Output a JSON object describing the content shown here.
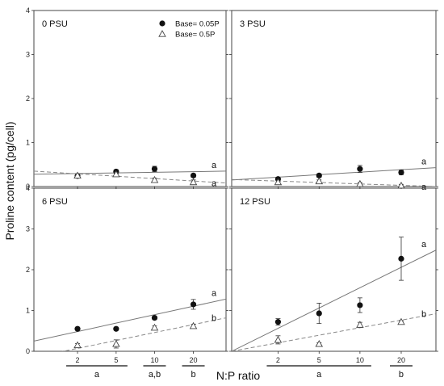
{
  "chart_data": {
    "type": "scatter",
    "y_axis_label": "Proline content (pg/cell)",
    "x_axis_label": "N:P ratio",
    "x_categories": [
      "2",
      "5",
      "10",
      "20"
    ],
    "y_ticks": [
      "0",
      "1",
      "2",
      "3",
      "4"
    ],
    "ylim": [
      0,
      4
    ],
    "legend": {
      "location": "top-right of first panel",
      "series": [
        {
          "label": "Base=  0.05P",
          "marker": "filled-circle",
          "line": "solid"
        },
        {
          "label": "Base=  0.5P",
          "marker": "open-triangle",
          "line": "dashed"
        }
      ]
    },
    "panels": [
      {
        "label": "0 PSU",
        "series": [
          {
            "name": "Base=  0.05P",
            "values": [
              0.24,
              0.34,
              0.4,
              0.25
            ],
            "errors": [
              0.03,
              0.04,
              0.06,
              0.04
            ],
            "fit": {
              "y_start": 0.28,
              "y_end": 0.35
            },
            "fit_label": "a"
          },
          {
            "name": "Base=  0.5P",
            "values": [
              0.25,
              0.28,
              0.15,
              0.1
            ],
            "errors": [
              0.03,
              0.04,
              0.04,
              0.05
            ],
            "fit": {
              "y_start": 0.35,
              "y_end": 0.08
            },
            "fit_label": "a"
          }
        ]
      },
      {
        "label": "3 PSU",
        "series": [
          {
            "name": "Base=  0.05P",
            "values": [
              0.17,
              0.25,
              0.4,
              0.32
            ],
            "errors": [
              0.03,
              0.04,
              0.08,
              0.05
            ],
            "fit": {
              "y_start": 0.15,
              "y_end": 0.43
            },
            "fit_label": "a"
          },
          {
            "name": "Base=  0.5P",
            "values": [
              0.1,
              0.12,
              0.06,
              0.02
            ],
            "errors": [
              0.03,
              0.03,
              0.03,
              0.03
            ],
            "fit": {
              "y_start": 0.16,
              "y_end": 0.0
            },
            "fit_label": "a"
          }
        ]
      },
      {
        "label": "6 PSU",
        "series": [
          {
            "name": "Base=  0.05P",
            "values": [
              0.55,
              0.55,
              0.82,
              1.15
            ],
            "errors": [
              0.03,
              0.03,
              0.04,
              0.12
            ],
            "fit": {
              "y_start": 0.25,
              "y_end": 1.28
            },
            "fit_label": "a"
          },
          {
            "name": "Base=  0.5P",
            "values": [
              0.15,
              0.18,
              0.58,
              0.62
            ],
            "errors": [
              0.04,
              0.1,
              0.04,
              0.04
            ],
            "fit": {
              "y_start": -0.15,
              "y_end": 0.82
            },
            "fit_label": "b"
          }
        ]
      },
      {
        "label": "12 PSU",
        "series": [
          {
            "name": "Base=  0.05P",
            "values": [
              0.72,
              0.93,
              1.13,
              2.27
            ],
            "errors": [
              0.08,
              0.25,
              0.18,
              0.53
            ],
            "fit": {
              "y_start": 0.0,
              "y_end": 2.48
            },
            "fit_label": "a"
          },
          {
            "name": "Base=  0.5P",
            "values": [
              0.28,
              0.18,
              0.65,
              0.72
            ],
            "errors": [
              0.1,
              0.03,
              0.06,
              0.03
            ],
            "fit": {
              "y_start": 0.0,
              "y_end": 0.92
            },
            "fit_label": "b"
          }
        ]
      }
    ],
    "group_letters": [
      {
        "spans": [
          "2",
          "5"
        ],
        "label": "a"
      },
      {
        "spans": [
          "10"
        ],
        "label": "a,b"
      },
      {
        "spans": [
          "20"
        ],
        "label": "b"
      }
    ],
    "group_letters_right": [
      {
        "spans": [
          "2",
          "5",
          "10"
        ],
        "label": "a"
      },
      {
        "spans": [
          "20"
        ],
        "label": "b"
      }
    ]
  }
}
